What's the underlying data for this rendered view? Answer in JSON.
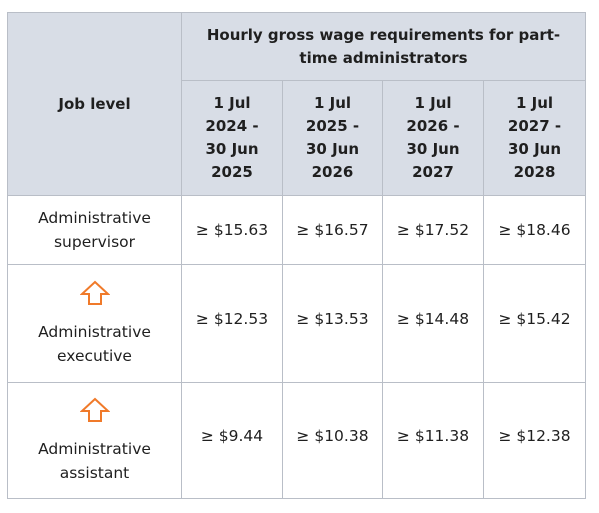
{
  "table": {
    "job_level_header": "Job level",
    "group_header": "Hourly gross wage requirements for part-time administrators",
    "periods": [
      {
        "line1": "1 Jul",
        "line2": "2024 -",
        "line3": "30 Jun",
        "line4": "2025"
      },
      {
        "line1": "1 Jul",
        "line2": "2025 -",
        "line3": "30 Jun",
        "line4": "2026"
      },
      {
        "line1": "1 Jul",
        "line2": "2026 -",
        "line3": "30 Jun",
        "line4": "2027"
      },
      {
        "line1": "1 Jul",
        "line2": "2027 -",
        "line3": "30 Jun",
        "line4": "2028"
      }
    ],
    "rows": [
      {
        "level": "Administrative supervisor",
        "arrow_icon": "none",
        "values": [
          "≥ $15.63",
          "≥ $16.57",
          "≥ $17.52",
          "≥ $18.46"
        ]
      },
      {
        "level": "Administrative executive",
        "arrow_icon": "orange-up-arrow-icon",
        "values": [
          "≥ $12.53",
          "≥ $13.53",
          "≥ $14.48",
          "≥ $15.42"
        ]
      },
      {
        "level": "Administrative assistant",
        "arrow_icon": "orange-up-arrow-icon",
        "values": [
          "≥ $9.44",
          "≥ $10.38",
          "≥ $11.38",
          "≥ $12.38"
        ]
      }
    ]
  },
  "colors": {
    "header_bg": "#d8dde6",
    "border": "#b9bec7",
    "arrow": "#f07a2a"
  }
}
